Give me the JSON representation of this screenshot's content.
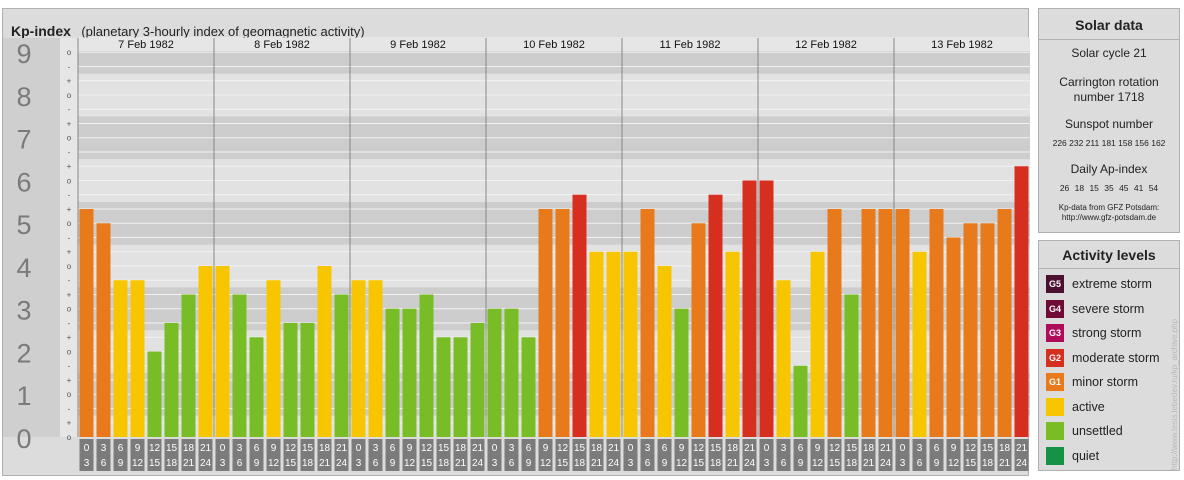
{
  "header": {
    "title": "Kp-index",
    "subtitle": "(planetary 3-hourly index of geomagnetic activity)"
  },
  "chart_data": {
    "type": "bar",
    "title": "Kp-index",
    "subtitle": "(planetary 3-hourly index of geomagnetic activity)",
    "y_ticks": [
      "0",
      "1",
      "2",
      "3",
      "4",
      "5",
      "6",
      "7",
      "8",
      "9"
    ],
    "y_minor_ticks": [
      "+",
      "o",
      "-"
    ],
    "ylim": [
      0,
      9.333
    ],
    "days": [
      "7 Feb 1982",
      "8 Feb 1982",
      "9 Feb 1982",
      "10 Feb 1982",
      "11 Feb 1982",
      "12 Feb 1982",
      "13 Feb 1982"
    ],
    "interval_start_labels": [
      "0",
      "3",
      "6",
      "9",
      "12",
      "15",
      "18",
      "21"
    ],
    "interval_end_labels": [
      "3",
      "6",
      "9",
      "12",
      "15",
      "18",
      "21",
      "24"
    ],
    "values": [
      [
        5.333,
        5.0,
        3.667,
        3.667,
        2.0,
        2.667,
        3.333,
        4.0
      ],
      [
        4.0,
        3.333,
        2.333,
        3.667,
        2.667,
        2.667,
        4.0,
        3.333
      ],
      [
        3.667,
        3.667,
        3.0,
        3.0,
        3.333,
        2.333,
        2.333,
        2.667
      ],
      [
        3.0,
        3.0,
        2.333,
        5.333,
        5.333,
        5.667,
        4.333,
        4.333
      ],
      [
        4.333,
        5.333,
        4.0,
        3.0,
        5.0,
        5.667,
        4.333,
        6.0
      ],
      [
        6.0,
        3.667,
        1.667,
        4.333,
        5.333,
        3.333,
        5.333,
        5.333
      ],
      [
        5.333,
        4.333,
        5.333,
        4.667,
        5.0,
        5.0,
        5.333,
        6.333
      ]
    ],
    "grid": true,
    "legend": "right"
  },
  "solar": {
    "title": "Solar data",
    "cycle": "Solar cycle 21",
    "carrington_line1": "Carrington rotation",
    "carrington_line2": "number 1718",
    "sunspot_title": "Sunspot number",
    "sunspot_values": "226 232 211 181 158 156 162",
    "ap_title": "Daily Ap-index",
    "ap_values": "26   18   15   35   45   41   54",
    "source_line1": "Kp-data from GFZ Potsdam:",
    "source_line2": "http://www.gfz-potsdam.de"
  },
  "activity": {
    "title": "Activity levels",
    "levels": [
      {
        "badge": "G5",
        "label": "extreme storm",
        "color": "#4a1030"
      },
      {
        "badge": "G4",
        "label": "severe storm",
        "color": "#6e0a35"
      },
      {
        "badge": "G3",
        "label": "strong storm",
        "color": "#b00c5a"
      },
      {
        "badge": "G2",
        "label": "moderate storm",
        "color": "#d62e1f"
      },
      {
        "badge": "G1",
        "label": "minor storm",
        "color": "#e87a1c"
      },
      {
        "badge": "",
        "label": "active",
        "color": "#f7c600"
      },
      {
        "badge": "",
        "label": "unsettled",
        "color": "#78bd25"
      },
      {
        "badge": "",
        "label": "quiet",
        "color": "#169247"
      }
    ]
  },
  "colors": {
    "quiet": "#169247",
    "unsettled": "#78bd25",
    "active": "#f7c600",
    "minor": "#e87a1c",
    "moderate": "#d62e1f",
    "strong": "#b00c5a"
  },
  "credit": "http://www.tesis.lebedev.ru/kp_archive.php"
}
